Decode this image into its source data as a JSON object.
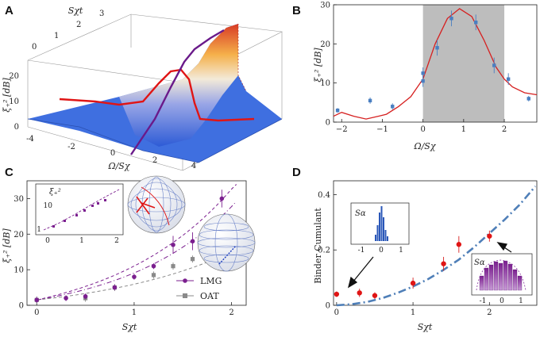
{
  "chart_data": [
    {
      "panel": "A",
      "type": "surface3d",
      "xlabel": "Ω/Sχ",
      "ylabel": "Sχt",
      "zlabel": "ξ₊² [dB]",
      "x_ticks": [
        "-4",
        "-2",
        "0",
        "2",
        "4"
      ],
      "y_ticks": [
        "0",
        "1",
        "2",
        "3"
      ],
      "z_ticks": [
        "0",
        "10",
        "20"
      ],
      "xlim": [
        -4,
        4
      ],
      "ylim": [
        0,
        3
      ],
      "zlim": [
        0,
        25
      ],
      "peak_region": "Ω/Sχ ≈ 1, Sχt ≈ 2–3"
    },
    {
      "panel": "B",
      "type": "scatter",
      "xlabel": "Ω/Sχ",
      "ylabel": "ξ₊² [dB]",
      "xlim": [
        -2.2,
        2.8
      ],
      "ylim": [
        0,
        30
      ],
      "x_ticks": [
        -2,
        -1,
        0,
        1,
        2
      ],
      "y_ticks": [
        0,
        10,
        20,
        30
      ],
      "shaded_region": [
        0,
        2
      ],
      "data_points": [
        {
          "x": -2.1,
          "y": 3.0,
          "err": 0.6
        },
        {
          "x": -1.3,
          "y": 5.5,
          "err": 0.8
        },
        {
          "x": -0.75,
          "y": 4.0,
          "err": 0.8
        },
        {
          "x": 0,
          "y": 10.5,
          "err": 1.5
        },
        {
          "x": 0,
          "y": 12.5,
          "err": 1.5
        },
        {
          "x": 0.35,
          "y": 19.0,
          "err": 2.0
        },
        {
          "x": 0.7,
          "y": 26.5,
          "err": 2.0
        },
        {
          "x": 1.3,
          "y": 25.5,
          "err": 2.0
        },
        {
          "x": 1.75,
          "y": 14.5,
          "err": 2.0
        },
        {
          "x": 2.1,
          "y": 11.0,
          "err": 1.5
        },
        {
          "x": 2.6,
          "y": 6.0,
          "err": 0.7
        }
      ],
      "theory_curve": {
        "x": [
          -2.2,
          -2.0,
          -1.7,
          -1.4,
          -1.1,
          -0.9,
          -0.6,
          -0.3,
          0,
          0.3,
          0.6,
          0.9,
          1.2,
          1.5,
          1.8,
          2.0,
          2.2,
          2.5,
          2.8
        ],
        "y": [
          1.5,
          2.5,
          1.5,
          0.8,
          1.5,
          2.0,
          4.0,
          6.5,
          11.0,
          20.0,
          26.5,
          29.0,
          27.0,
          21.0,
          14.0,
          11.0,
          9.0,
          7.5,
          7.0
        ]
      }
    },
    {
      "panel": "C",
      "type": "scatter",
      "xlabel": "Sχt",
      "ylabel": "ξ₊² [dB]",
      "xlim": [
        0,
        2
      ],
      "ylim": [
        0,
        35
      ],
      "x_ticks": [
        0,
        1,
        2
      ],
      "y_ticks": [
        0,
        10,
        20,
        30
      ],
      "legend": [
        "LMG",
        "OAT"
      ],
      "series": [
        {
          "name": "LMG",
          "x": [
            0,
            0.3,
            0.5,
            0.8,
            1.0,
            1.2,
            1.4,
            1.6,
            1.9
          ],
          "y": [
            1.5,
            2.0,
            2.5,
            5.0,
            8.0,
            11.0,
            17.0,
            18.0,
            30.0
          ]
        },
        {
          "name": "OAT",
          "x": [
            0,
            0.5,
            0.8,
            1.2,
            1.4,
            1.6,
            1.8
          ],
          "y": [
            1.5,
            2.0,
            5.0,
            8.5,
            11.0,
            13.0,
            15.0
          ]
        }
      ],
      "inset": {
        "ylabel": "ξ₊²",
        "x_ticks": [
          0,
          1,
          2
        ],
        "y_ticks": [
          1,
          10
        ],
        "y_scale": "log"
      }
    },
    {
      "panel": "D",
      "type": "scatter",
      "xlabel": "Sχt",
      "ylabel": "Binder Cumulant",
      "xlim": [
        0,
        2.6
      ],
      "ylim": [
        0,
        0.45
      ],
      "x_ticks": [
        0,
        1,
        2
      ],
      "y_ticks": [
        0,
        0.2,
        0.4
      ],
      "data_points": [
        {
          "x": 0,
          "y": 0.04,
          "err": 0.01
        },
        {
          "x": 0.3,
          "y": 0.045,
          "err": 0.015
        },
        {
          "x": 0.5,
          "y": 0.035,
          "err": 0.012
        },
        {
          "x": 1.0,
          "y": 0.08,
          "err": 0.02
        },
        {
          "x": 1.4,
          "y": 0.15,
          "err": 0.025
        },
        {
          "x": 1.6,
          "y": 0.22,
          "err": 0.03
        },
        {
          "x": 2.0,
          "y": 0.25,
          "err": 0.02
        }
      ],
      "theory_curve": {
        "x": [
          0,
          0.2,
          0.4,
          0.6,
          0.8,
          1.0,
          1.2,
          1.4,
          1.6,
          1.8,
          2.0,
          2.2,
          2.4,
          2.6
        ],
        "y": [
          0.0,
          0.004,
          0.012,
          0.026,
          0.045,
          0.068,
          0.095,
          0.128,
          0.165,
          0.21,
          0.26,
          0.31,
          0.365,
          0.43
        ]
      },
      "insets": [
        {
          "xlabel": "Sα",
          "x_ticks": [
            "-1",
            "0",
            "1"
          ]
        },
        {
          "xlabel": "Sα",
          "x_ticks": [
            "-1",
            "0",
            "1"
          ]
        }
      ]
    }
  ],
  "labels": {
    "panel_a": "A",
    "panel_b": "B",
    "panel_c": "C",
    "panel_d": "D",
    "a_xlabel": "Ω/Sχ",
    "a_ylabel": "Sχt",
    "a_zlabel": "ξ₊² [dB]",
    "b_xlabel": "Ω/Sχ",
    "b_ylabel": "ξ₊² [dB]",
    "c_xlabel": "Sχt",
    "c_ylabel": "ξ₊² [dB]",
    "c_inset_ylabel": "ξ₊²",
    "d_xlabel": "Sχt",
    "d_ylabel": "Binder Cumulant",
    "d_inset_label": "Sα",
    "legend_lmg": "LMG",
    "legend_oat": "OAT"
  },
  "colors": {
    "data_blue": "#4a7fc1",
    "theory_red": "#d62020",
    "lmg_purple": "#7b1f8f",
    "oat_gray": "#8a8a8a",
    "shade": "#bdbdbd",
    "dashdot_blue": "#4f7fb8"
  }
}
